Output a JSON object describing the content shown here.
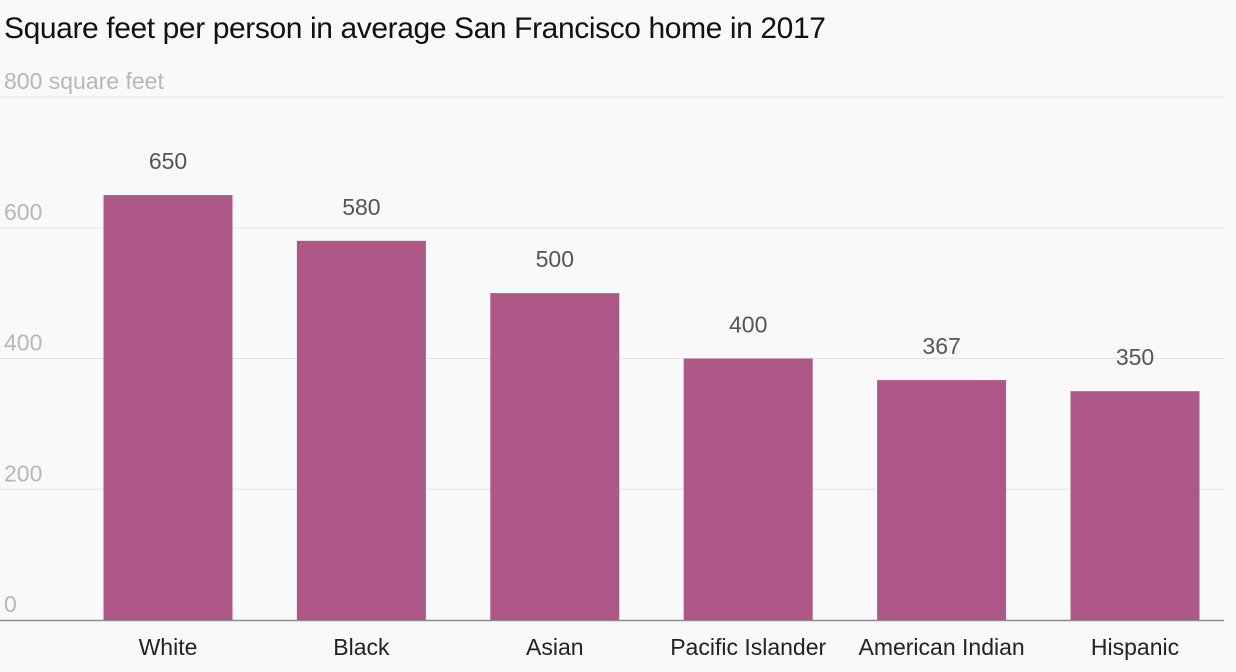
{
  "chart_data": {
    "type": "bar",
    "title": "Square feet per person in average San Francisco home in 2017",
    "ylabel": "square feet",
    "ylim": [
      0,
      800
    ],
    "yticks": [
      0,
      200,
      400,
      600,
      800
    ],
    "ytick_labels": [
      "0",
      "200",
      "400",
      "600",
      "800 square feet"
    ],
    "categories": [
      "White",
      "Black",
      "Asian",
      "Pacific Islander",
      "American Indian",
      "Hispanic"
    ],
    "values": [
      650,
      580,
      500,
      400,
      367,
      350
    ],
    "value_labels": [
      "650",
      "580",
      "500",
      "400",
      "367",
      "350"
    ],
    "grid": true,
    "legend": "none",
    "bar_color": "#ad5887",
    "grid_color": "#e4e4e4",
    "axis_color": "#8c8c8c"
  }
}
